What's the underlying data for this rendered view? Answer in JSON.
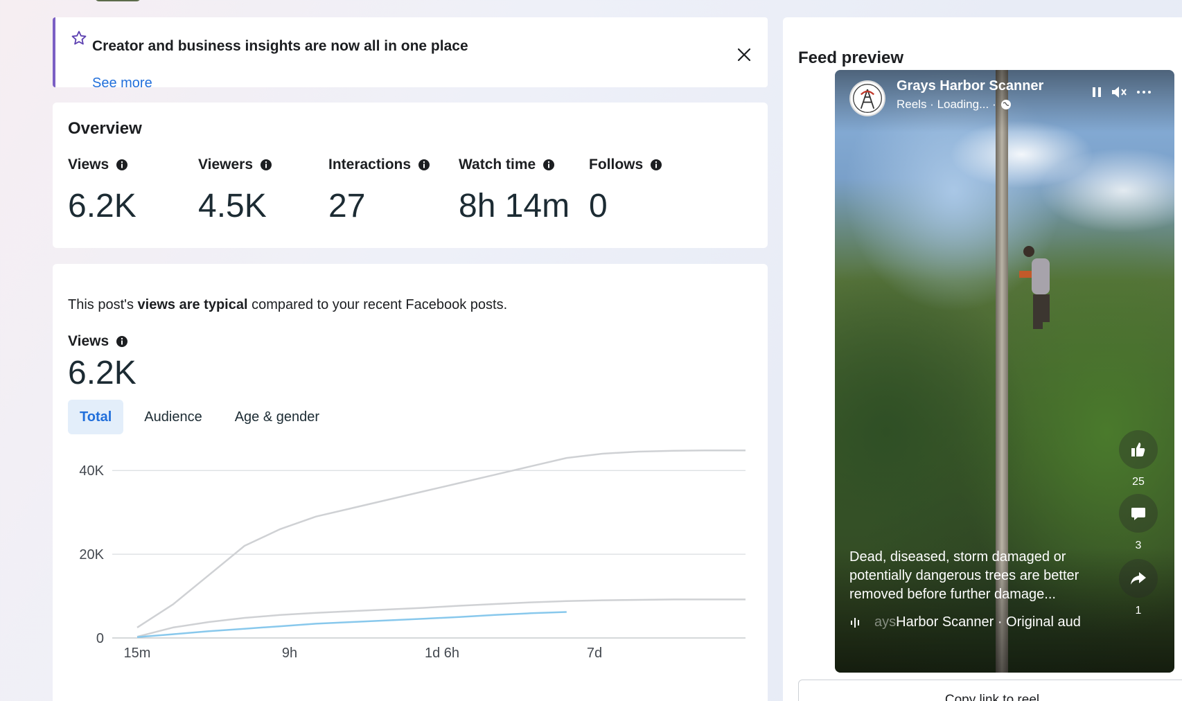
{
  "banner": {
    "title": "Creator and business insights are now all in one place",
    "link": "See more"
  },
  "overview": {
    "heading": "Overview",
    "metrics": [
      {
        "label": "Views",
        "value": "6.2K"
      },
      {
        "label": "Viewers",
        "value": "4.5K"
      },
      {
        "label": "Interactions",
        "value": "27"
      },
      {
        "label": "Watch time",
        "value": "8h 14m"
      },
      {
        "label": "Follows",
        "value": "0"
      }
    ]
  },
  "views_section": {
    "sentence_pre": "This post's ",
    "sentence_bold": "views are typical",
    "sentence_post": " compared to your recent Facebook posts.",
    "label": "Views",
    "value": "6.2K",
    "tabs": [
      "Total",
      "Audience",
      "Age & gender"
    ],
    "active_tab": "Total"
  },
  "chart_data": {
    "type": "line",
    "ylim": [
      0,
      45000
    ],
    "y_ticks": [
      "0",
      "20K",
      "40K"
    ],
    "x_ticks": [
      "15m",
      "9h",
      "1d 6h",
      "7d"
    ],
    "series": [
      {
        "color": "#cfd1d4",
        "values": [
          2500,
          8000,
          15000,
          22000,
          26000,
          29000,
          31000,
          33000,
          35000,
          37000,
          39000,
          41000,
          43000,
          44000,
          44500,
          44700,
          44800,
          44800
        ]
      },
      {
        "color": "#cfd1d4",
        "values": [
          300,
          2500,
          3800,
          4800,
          5500,
          6000,
          6400,
          6800,
          7200,
          7700,
          8100,
          8500,
          8800,
          9000,
          9100,
          9200,
          9200,
          9200
        ]
      },
      {
        "color": "#88c8ec",
        "values": [
          200,
          900,
          1600,
          2200,
          2800,
          3400,
          3800,
          4200,
          4600,
          5000,
          5500,
          5900,
          6200
        ]
      }
    ]
  },
  "feed": {
    "heading": "Feed preview",
    "page_name": "Grays Harbor Scanner",
    "sub": "Reels · Loading... ·",
    "caption": "Dead, diseased, storm damaged or potentially dangerous trees are better removed before further damage...",
    "audio_faded": "ays",
    "audio_text": " Harbor Scanner · Original aud",
    "likes": "25",
    "comments": "3",
    "shares": "1",
    "copy_link": "Copy link to reel"
  },
  "colors": {
    "accent": "#216fdb",
    "banner_bar": "#7b5fc4",
    "active_tab_bg": "#e3eefa"
  }
}
